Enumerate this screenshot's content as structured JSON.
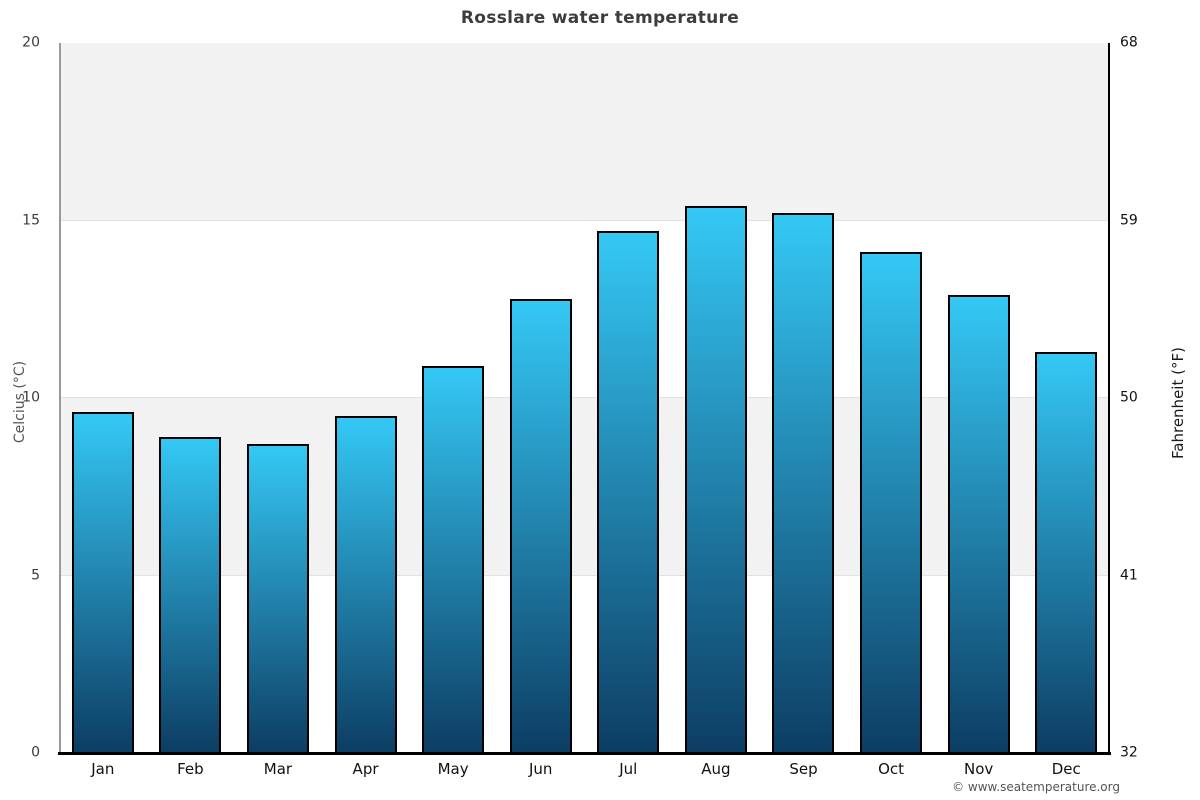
{
  "figure": {
    "title": "Rosslare water temperature",
    "watermark": "© www.seatemperature.org"
  },
  "chart_data": {
    "type": "bar",
    "title": "Rosslare water temperature",
    "categories": [
      "Jan",
      "Feb",
      "Mar",
      "Apr",
      "May",
      "Jun",
      "Jul",
      "Aug",
      "Sep",
      "Oct",
      "Nov",
      "Dec"
    ],
    "values": [
      9.6,
      8.9,
      8.7,
      9.5,
      10.9,
      12.8,
      14.7,
      15.4,
      15.2,
      14.1,
      12.9,
      11.3
    ],
    "unit": "°C",
    "xlabel": "",
    "ylabel_left": "Celcius (°C)",
    "ylabel_right": "Fahrenheit (°F)",
    "yticks_left": [
      20,
      15,
      10,
      5,
      0
    ],
    "yticks_right": [
      68,
      59,
      50,
      41,
      32
    ],
    "ylim": [
      0,
      20
    ],
    "ylim_fahrenheit": [
      32,
      68
    ],
    "grid": "alternating horizontal gray bands every 5 degrees C",
    "legend": "none",
    "colors": {
      "bar_gradient_top": "#35c8f5",
      "bar_gradient_bottom": "#0d3d63",
      "bar_border": "#000000",
      "band": "#f2f2f2",
      "gridline": "#e2e2e2",
      "axis_left": "#9a9a9a",
      "axis_right": "#000000",
      "axis_bottom": "#000000",
      "title_color": "#3d3d3d",
      "watermark_color": "#555555"
    }
  }
}
